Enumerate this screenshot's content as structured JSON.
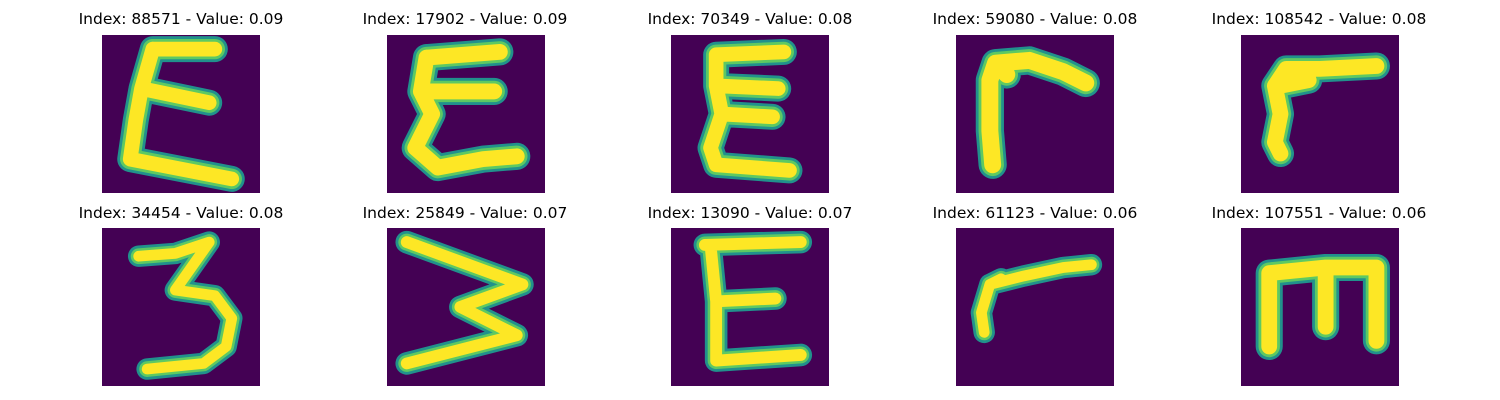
{
  "colors": {
    "background": "#440154",
    "outer_edge": "#21918c",
    "mid_edge": "#5ec962",
    "core": "#fde725"
  },
  "panels": [
    {
      "title": "Index: 88571 - Value: 0.09",
      "glyph": "curly-E"
    },
    {
      "title": "Index: 17902 - Value: 0.09",
      "glyph": "curly-E"
    },
    {
      "title": "Index: 70349 - Value: 0.08",
      "glyph": "curly-E"
    },
    {
      "title": "Index: 59080 - Value: 0.08",
      "glyph": "gamma-r"
    },
    {
      "title": "Index: 108542 - Value: 0.08",
      "glyph": "gamma-r"
    },
    {
      "title": "Index: 34454 - Value: 0.08",
      "glyph": "three"
    },
    {
      "title": "Index: 25849 - Value: 0.07",
      "glyph": "sideways-W"
    },
    {
      "title": "Index: 13090 - Value: 0.07",
      "glyph": "letter-E"
    },
    {
      "title": "Index: 61123 - Value: 0.06",
      "glyph": "gamma-r"
    },
    {
      "title": "Index: 107551 - Value: 0.06",
      "glyph": "letter-E-sideways"
    }
  ]
}
